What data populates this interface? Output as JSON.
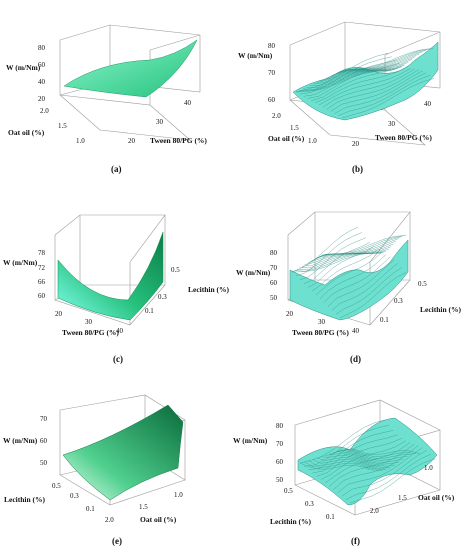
{
  "chart_data": [
    {
      "type": "surface",
      "panel_label": "(a)",
      "zlabel": "W (m/Nm)",
      "z_ticks": [
        "80",
        "60",
        "40",
        "20"
      ],
      "x_axis_label": "Oat oil (%)",
      "x_ticks": [
        "2.0",
        "1.5",
        "1.0"
      ],
      "y_axis_label": "Tween 80/PG (%)",
      "y_ticks": [
        "20",
        "30",
        "40"
      ],
      "surface_style": "smooth",
      "colors": [
        "#2fd58a",
        "#7df2c6"
      ]
    },
    {
      "type": "surface",
      "panel_label": "(b)",
      "zlabel": "W (m/Nm)",
      "z_ticks": [
        "80",
        "70",
        "60"
      ],
      "x_axis_label": "Oat oil (%)",
      "x_ticks": [
        "2.0",
        "1.5",
        "1.0"
      ],
      "y_axis_label": "Tween 80/PG (%)",
      "y_ticks": [
        "20",
        "30",
        "40"
      ],
      "surface_style": "wireframe",
      "colors": [
        "#5fd6c8",
        "#3a8f86"
      ]
    },
    {
      "type": "surface",
      "panel_label": "(c)",
      "zlabel": "W (m/Nm)",
      "z_ticks": [
        "78",
        "72",
        "66",
        "60"
      ],
      "x_axis_label": "Tween 80/PG (%)",
      "x_ticks": [
        "20",
        "30",
        "40"
      ],
      "y_axis_label": "Lecithin (%)",
      "y_ticks": [
        "0.1",
        "0.3",
        "0.5"
      ],
      "surface_style": "smooth",
      "colors": [
        "#0f8f52",
        "#7dfbe0"
      ]
    },
    {
      "type": "surface",
      "panel_label": "(d)",
      "zlabel": "W (m/Nm)",
      "z_ticks": [
        "80",
        "70",
        "60",
        "50"
      ],
      "x_axis_label": "Tween 80/PG (%)",
      "x_ticks": [
        "20",
        "30",
        "40"
      ],
      "y_axis_label": "Lecithin (%)",
      "y_ticks": [
        "0.1",
        "0.3",
        "0.5"
      ],
      "surface_style": "wireframe",
      "colors": [
        "#5fd6c8",
        "#3a8f86"
      ]
    },
    {
      "type": "surface",
      "panel_label": "(e)",
      "zlabel": "W (m/Nm)",
      "z_ticks": [
        "70",
        "60",
        "50"
      ],
      "x_axis_label": "Oat oil (%)",
      "x_ticks": [
        "2.0",
        "1.5",
        "1.0"
      ],
      "y_axis_label": "Lecithin (%)",
      "y_ticks": [
        "0.5",
        "0.3",
        "0.1"
      ],
      "surface_style": "smooth",
      "colors": [
        "#0e7a45",
        "#c8f7dc"
      ]
    },
    {
      "type": "surface",
      "panel_label": "(f)",
      "zlabel": "W (m/Nm)",
      "z_ticks": [
        "80",
        "70",
        "60",
        "50"
      ],
      "x_axis_label": "Lecithin (%)",
      "x_ticks": [
        "0.5",
        "0.3",
        "0.1"
      ],
      "y_axis_label": "Oat oil (%)",
      "y_ticks": [
        "2.0",
        "1.5",
        "1.0"
      ],
      "surface_style": "wireframe",
      "colors": [
        "#5fd6c8",
        "#3a8f86"
      ]
    }
  ]
}
